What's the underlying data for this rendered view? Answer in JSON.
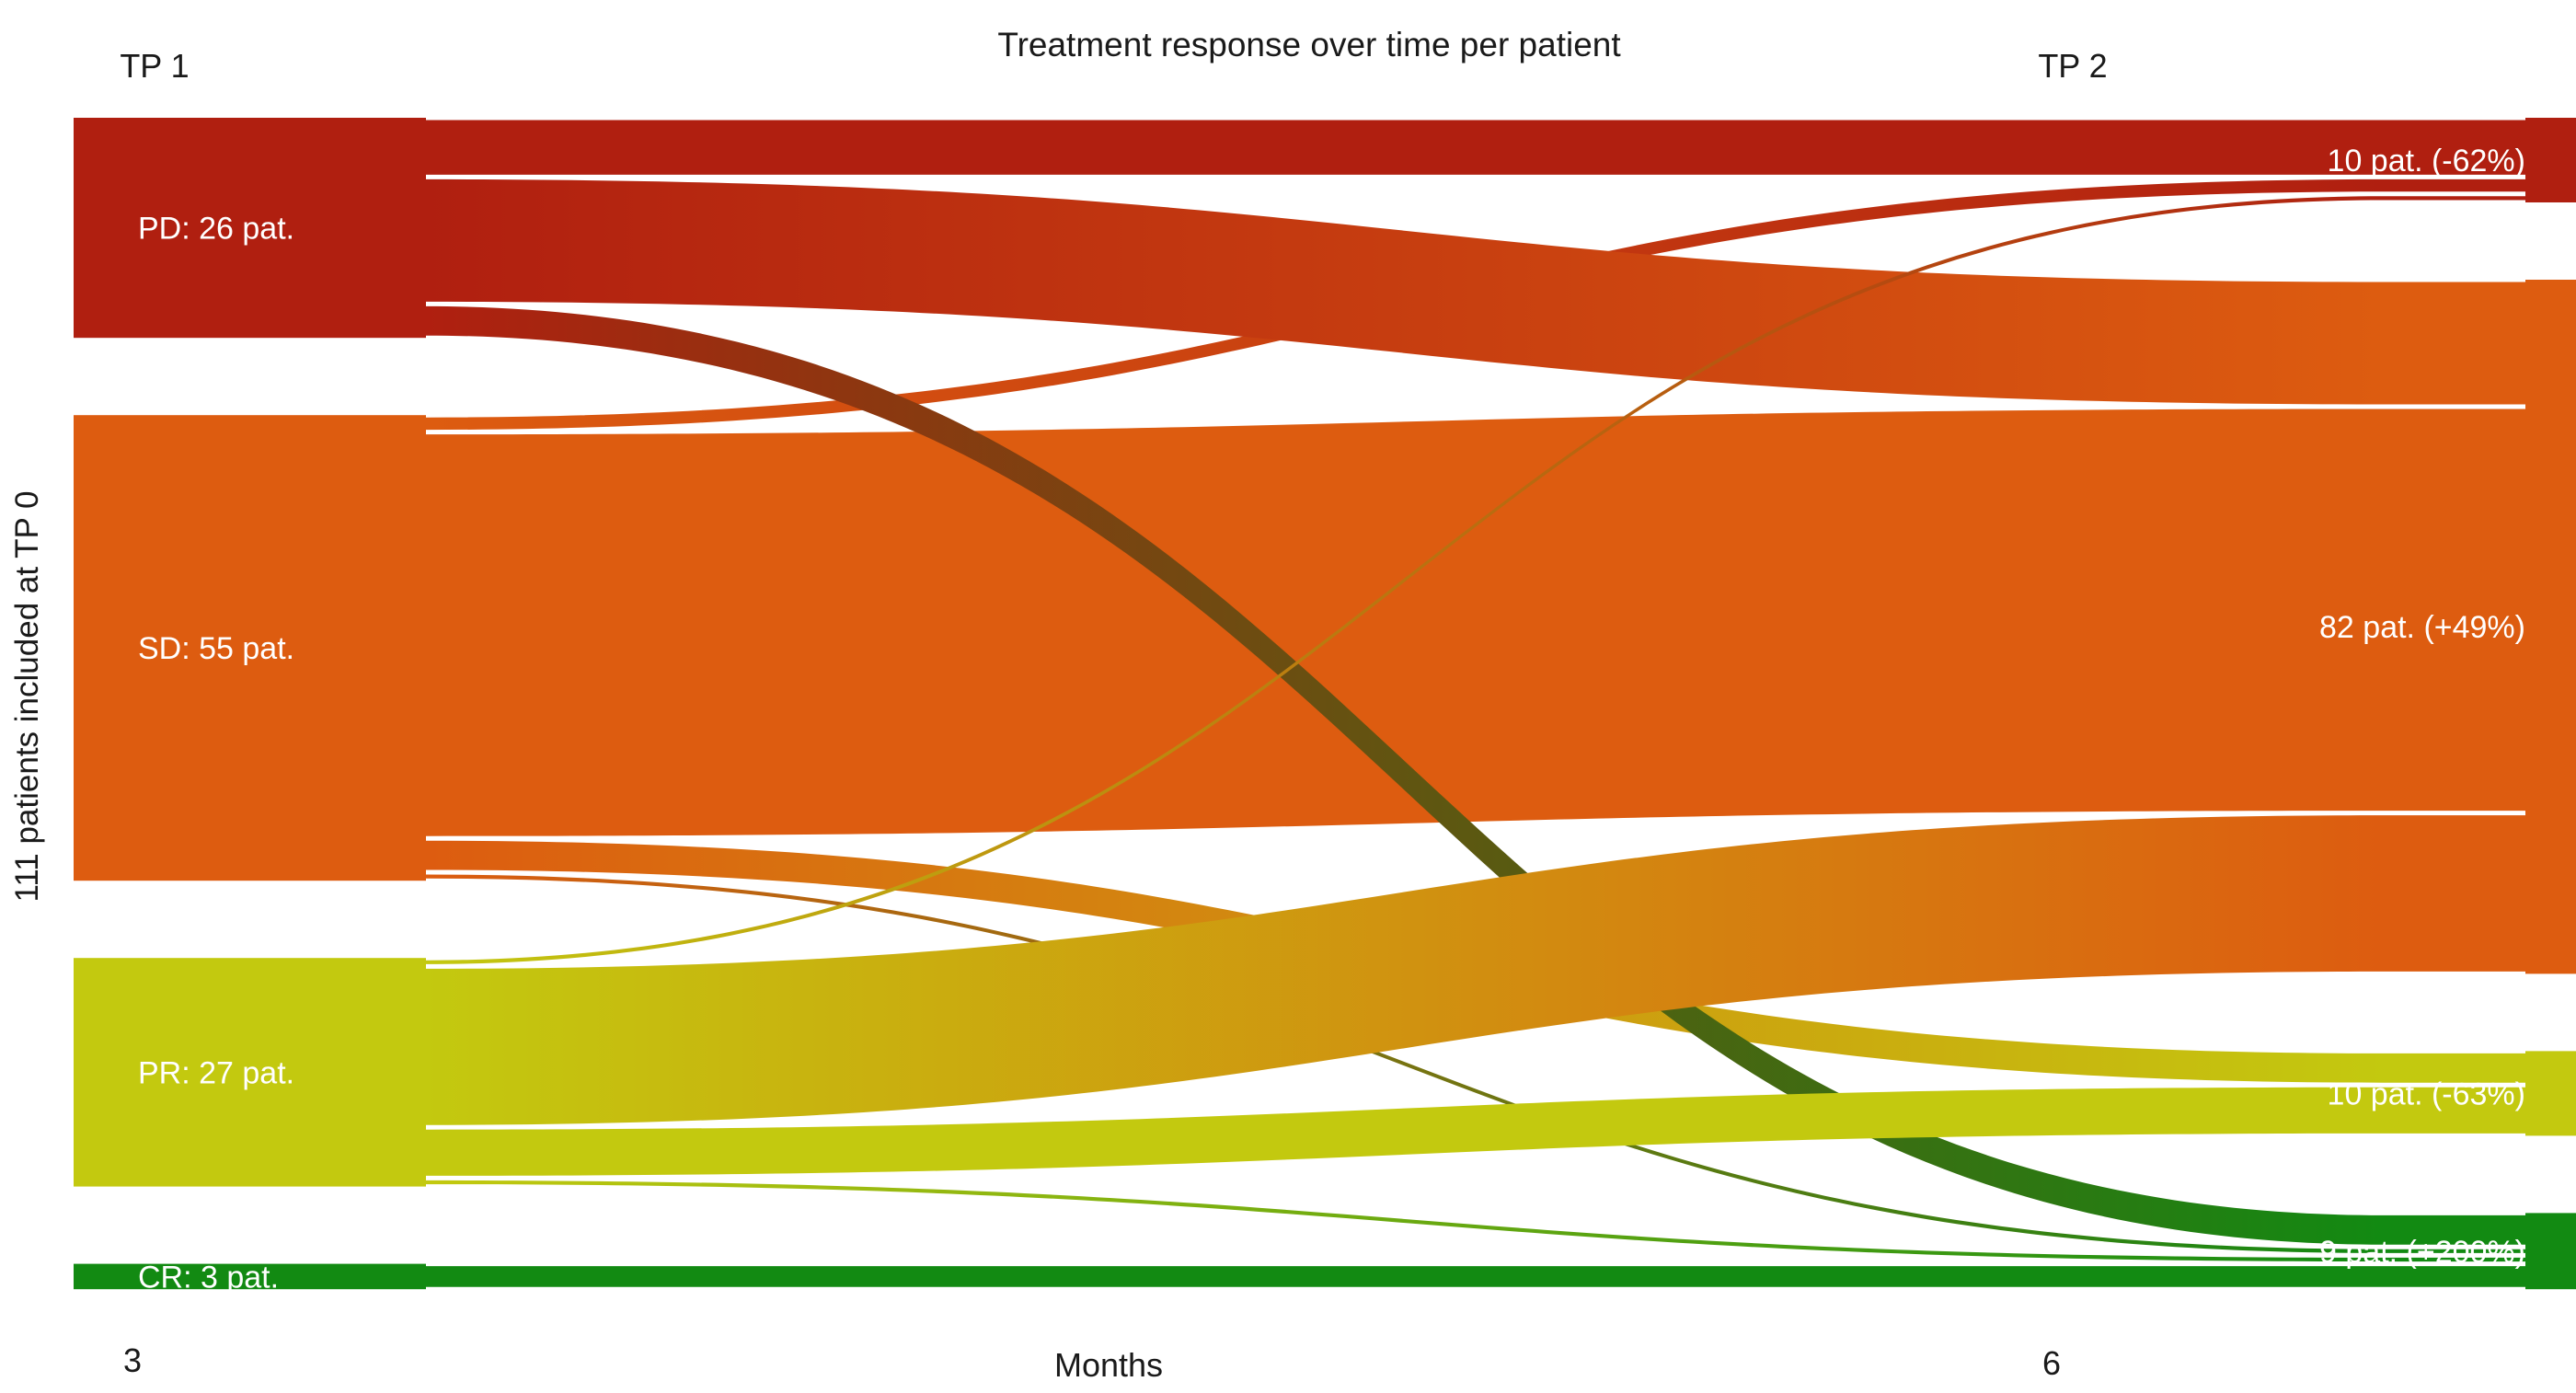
{
  "title": "Treatment response over time per patient",
  "column_headers": {
    "left": "TP 1",
    "right": "TP 2"
  },
  "y_axis_label": "111 patients included at TP 0",
  "x_axis": {
    "label": "Months",
    "tick_left": "3",
    "tick_right": "6"
  },
  "chart_data": {
    "type": "sankey",
    "title": "Treatment response over time per patient",
    "total_patients": 111,
    "timepoints": [
      "TP 1",
      "TP 2"
    ],
    "x_values": [
      "3",
      "6"
    ],
    "legend_position": "none",
    "nodes_left": [
      {
        "id": "PD",
        "label": "PD: 26 pat.",
        "value": 26,
        "color": "#b01f10"
      },
      {
        "id": "SD",
        "label": "SD: 55 pat.",
        "value": 55,
        "color": "#dd5c10"
      },
      {
        "id": "PR",
        "label": "PR: 27 pat.",
        "value": 27,
        "color": "#c3c90f"
      },
      {
        "id": "CR",
        "label": "CR: 3 pat.",
        "value": 3,
        "color": "#128a12"
      }
    ],
    "nodes_right": [
      {
        "id": "PD",
        "label": "10 pat. (-62%)",
        "value": 10
      },
      {
        "id": "SD",
        "label": "82 pat. (+49%)",
        "value": 82
      },
      {
        "id": "PR",
        "label": "10 pat. (-63%)",
        "value": 10
      },
      {
        "id": "CR",
        "label": "9 pat. (+200%)",
        "value": 9
      }
    ],
    "flows": [
      {
        "from": "PD",
        "to": "PD",
        "value": 7
      },
      {
        "from": "PD",
        "to": "SD",
        "value": 15
      },
      {
        "from": "PD",
        "to": "CR",
        "value": 4
      },
      {
        "from": "SD",
        "to": "PD",
        "value": 2
      },
      {
        "from": "SD",
        "to": "SD",
        "value": 48
      },
      {
        "from": "SD",
        "to": "PR",
        "value": 4
      },
      {
        "from": "SD",
        "to": "CR",
        "value": 1
      },
      {
        "from": "PR",
        "to": "PD",
        "value": 1
      },
      {
        "from": "PR",
        "to": "SD",
        "value": 19
      },
      {
        "from": "PR",
        "to": "PR",
        "value": 6
      },
      {
        "from": "PR",
        "to": "CR",
        "value": 1
      },
      {
        "from": "CR",
        "to": "CR",
        "value": 3
      }
    ]
  }
}
